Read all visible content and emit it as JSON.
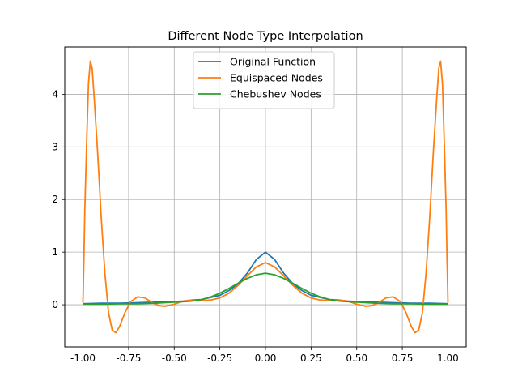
{
  "chart_data": {
    "type": "line",
    "title": "Different Node Type Interpolation",
    "xlabel": "",
    "ylabel": "",
    "xlim": [
      -1.1,
      1.1
    ],
    "ylim": [
      -0.8,
      4.9
    ],
    "x_ticks": [
      -1.0,
      -0.75,
      -0.5,
      -0.25,
      0.0,
      0.25,
      0.5,
      0.75,
      1.0
    ],
    "x_tick_labels": [
      "-1.00",
      "-0.75",
      "-0.50",
      "-0.25",
      "0.00",
      "0.25",
      "0.50",
      "0.75",
      "1.00"
    ],
    "y_ticks": [
      0,
      1,
      2,
      3,
      4
    ],
    "y_tick_labels": [
      "0",
      "1",
      "2",
      "3",
      "4"
    ],
    "grid": true,
    "legend_position": "top-center",
    "series": [
      {
        "name": "Original Function",
        "color": "#1f77b4",
        "points": [
          [
            -1.0,
            0.02
          ],
          [
            -0.9,
            0.03
          ],
          [
            -0.8,
            0.03
          ],
          [
            -0.7,
            0.04
          ],
          [
            -0.6,
            0.05
          ],
          [
            -0.5,
            0.06
          ],
          [
            -0.45,
            0.07
          ],
          [
            -0.4,
            0.09
          ],
          [
            -0.35,
            0.1
          ],
          [
            -0.3,
            0.14
          ],
          [
            -0.25,
            0.18
          ],
          [
            -0.2,
            0.27
          ],
          [
            -0.15,
            0.4
          ],
          [
            -0.1,
            0.6
          ],
          [
            -0.05,
            0.86
          ],
          [
            0.0,
            1.0
          ],
          [
            0.05,
            0.86
          ],
          [
            0.1,
            0.6
          ],
          [
            0.15,
            0.4
          ],
          [
            0.2,
            0.27
          ],
          [
            0.25,
            0.18
          ],
          [
            0.3,
            0.14
          ],
          [
            0.35,
            0.1
          ],
          [
            0.4,
            0.09
          ],
          [
            0.45,
            0.07
          ],
          [
            0.5,
            0.06
          ],
          [
            0.6,
            0.05
          ],
          [
            0.7,
            0.04
          ],
          [
            0.8,
            0.03
          ],
          [
            0.9,
            0.03
          ],
          [
            1.0,
            0.02
          ]
        ]
      },
      {
        "name": "Equispaced Nodes",
        "color": "#ff7f0e",
        "points": [
          [
            -1.0,
            0.04
          ],
          [
            -0.995,
            0.9
          ],
          [
            -0.99,
            1.8
          ],
          [
            -0.98,
            3.1
          ],
          [
            -0.97,
            4.2
          ],
          [
            -0.96,
            4.63
          ],
          [
            -0.95,
            4.5
          ],
          [
            -0.94,
            4.0
          ],
          [
            -0.92,
            2.9
          ],
          [
            -0.9,
            1.65
          ],
          [
            -0.88,
            0.6
          ],
          [
            -0.86,
            -0.15
          ],
          [
            -0.84,
            -0.48
          ],
          [
            -0.82,
            -0.53
          ],
          [
            -0.8,
            -0.42
          ],
          [
            -0.77,
            -0.15
          ],
          [
            -0.74,
            0.06
          ],
          [
            -0.7,
            0.15
          ],
          [
            -0.66,
            0.13
          ],
          [
            -0.62,
            0.04
          ],
          [
            -0.58,
            -0.02
          ],
          [
            -0.55,
            -0.03
          ],
          [
            -0.5,
            0.01
          ],
          [
            -0.45,
            0.07
          ],
          [
            -0.4,
            0.09
          ],
          [
            -0.35,
            0.08
          ],
          [
            -0.3,
            0.09
          ],
          [
            -0.25,
            0.13
          ],
          [
            -0.2,
            0.22
          ],
          [
            -0.15,
            0.37
          ],
          [
            -0.1,
            0.55
          ],
          [
            -0.05,
            0.72
          ],
          [
            0.0,
            0.8
          ],
          [
            0.05,
            0.72
          ],
          [
            0.1,
            0.55
          ],
          [
            0.15,
            0.37
          ],
          [
            0.2,
            0.22
          ],
          [
            0.25,
            0.13
          ],
          [
            0.3,
            0.09
          ],
          [
            0.35,
            0.08
          ],
          [
            0.4,
            0.09
          ],
          [
            0.45,
            0.07
          ],
          [
            0.5,
            0.01
          ],
          [
            0.55,
            -0.03
          ],
          [
            0.58,
            -0.02
          ],
          [
            0.62,
            0.04
          ],
          [
            0.66,
            0.13
          ],
          [
            0.7,
            0.15
          ],
          [
            0.74,
            0.06
          ],
          [
            0.77,
            -0.15
          ],
          [
            0.8,
            -0.42
          ],
          [
            0.82,
            -0.53
          ],
          [
            0.84,
            -0.48
          ],
          [
            0.86,
            -0.15
          ],
          [
            0.88,
            0.6
          ],
          [
            0.9,
            1.65
          ],
          [
            0.92,
            2.9
          ],
          [
            0.94,
            4.0
          ],
          [
            0.95,
            4.5
          ],
          [
            0.96,
            4.63
          ],
          [
            0.97,
            4.2
          ],
          [
            0.98,
            3.1
          ],
          [
            0.99,
            1.8
          ],
          [
            0.995,
            0.9
          ],
          [
            1.0,
            0.04
          ]
        ]
      },
      {
        "name": "Chebushev Nodes",
        "color": "#2ca02c",
        "points": [
          [
            -1.0,
            0.01
          ],
          [
            -0.9,
            0.01
          ],
          [
            -0.8,
            0.02
          ],
          [
            -0.7,
            0.02
          ],
          [
            -0.6,
            0.03
          ],
          [
            -0.5,
            0.05
          ],
          [
            -0.45,
            0.06
          ],
          [
            -0.4,
            0.07
          ],
          [
            -0.35,
            0.1
          ],
          [
            -0.3,
            0.15
          ],
          [
            -0.25,
            0.22
          ],
          [
            -0.2,
            0.31
          ],
          [
            -0.15,
            0.41
          ],
          [
            -0.1,
            0.5
          ],
          [
            -0.05,
            0.57
          ],
          [
            0.0,
            0.6
          ],
          [
            0.05,
            0.57
          ],
          [
            0.1,
            0.5
          ],
          [
            0.15,
            0.41
          ],
          [
            0.2,
            0.31
          ],
          [
            0.25,
            0.22
          ],
          [
            0.3,
            0.15
          ],
          [
            0.35,
            0.1
          ],
          [
            0.4,
            0.07
          ],
          [
            0.45,
            0.06
          ],
          [
            0.5,
            0.05
          ],
          [
            0.6,
            0.03
          ],
          [
            0.7,
            0.02
          ],
          [
            0.8,
            0.02
          ],
          [
            0.9,
            0.01
          ],
          [
            1.0,
            0.01
          ]
        ]
      }
    ]
  }
}
